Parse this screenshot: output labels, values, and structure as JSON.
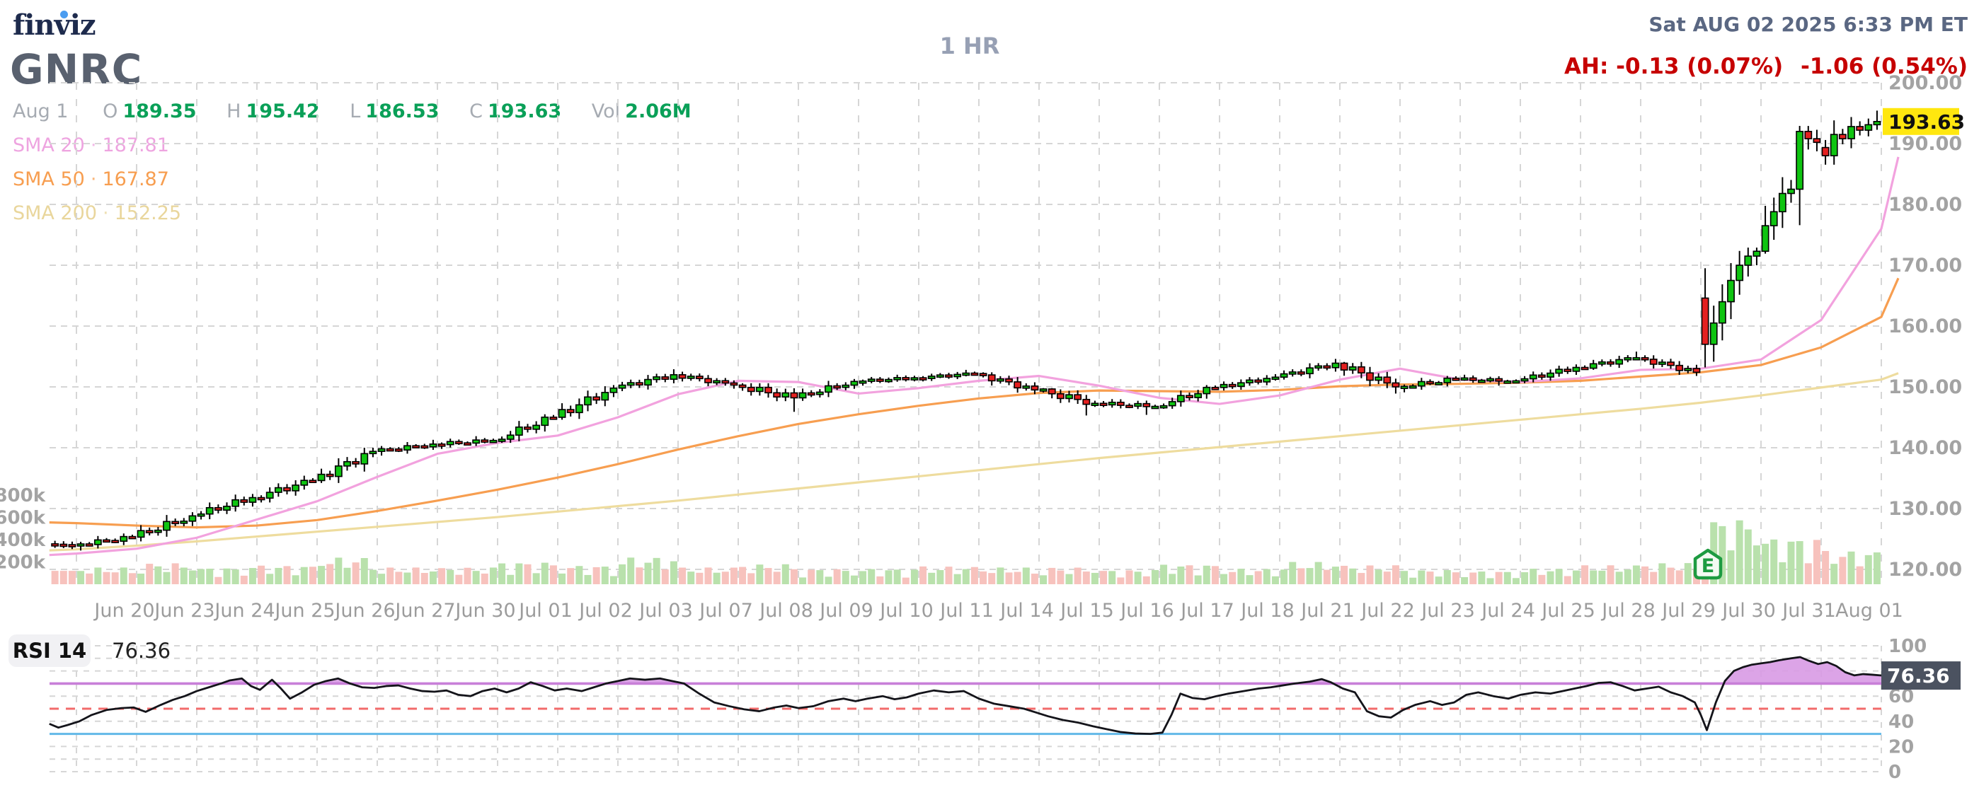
{
  "header": {
    "logo": "finviz",
    "ticker": "GNRC",
    "timeframe": "1 HR",
    "timestamp": "Sat AUG 02 2025 6:33 PM ET",
    "afterhours_1": "AH: -0.13 (0.07%)",
    "afterhours_2": "-1.06 (0.54%)",
    "quote": {
      "date": "Aug 1",
      "o_label": "O",
      "o": "189.35",
      "h_label": "H",
      "h": "195.42",
      "l_label": "L",
      "l": "186.53",
      "c_label": "C",
      "c": "193.63",
      "vol_label": "Vol",
      "vol": "2.06M"
    },
    "sma_legend": [
      {
        "label": "SMA 20",
        "separator": "·",
        "value": "187.81"
      },
      {
        "label": "SMA 50",
        "separator": "·",
        "value": "167.87"
      },
      {
        "label": "SMA 200",
        "separator": "·",
        "value": "152.25"
      }
    ]
  },
  "price_axis": {
    "labels": [
      "200.00",
      "190.00",
      "180.00",
      "170.00",
      "160.00",
      "150.00",
      "140.00",
      "130.00",
      "120.00"
    ],
    "max": 200,
    "min": 120,
    "step": 10,
    "last_price": "193.63",
    "last_price_value": 193.63
  },
  "volume_axis": {
    "labels": [
      [
        "800k",
        800
      ],
      [
        "600k",
        600
      ],
      [
        "400k",
        400
      ],
      [
        "200k",
        200
      ]
    ]
  },
  "dates": [
    "Jun 20",
    "Jun 23",
    "Jun 24",
    "Jun 25",
    "Jun 26",
    "Jun 27",
    "Jun 30",
    "Jul 01",
    "Jul 02",
    "Jul 03",
    "Jul 07",
    "Jul 08",
    "Jul 09",
    "Jul 10",
    "Jul 11",
    "Jul 14",
    "Jul 15",
    "Jul 16",
    "Jul 17",
    "Jul 18",
    "Jul 21",
    "Jul 22",
    "Jul 23",
    "Jul 24",
    "Jul 25",
    "Jul 28",
    "Jul 29",
    "Jul 30",
    "Jul 31",
    "Aug 01"
  ],
  "earnings_marker": {
    "label": "E",
    "day": "Jul 30",
    "day_index": 27
  },
  "rsi": {
    "label": "RSI 14",
    "value": "76.36",
    "value_num": 76.36,
    "axis_labels": [
      100,
      80,
      60,
      40,
      20,
      0
    ],
    "grid_levels": [
      100,
      90,
      80,
      60,
      40,
      20,
      10,
      0
    ],
    "levels": {
      "overbought": 70,
      "mid": 50,
      "oversold": 30
    },
    "points": [
      [
        -0.45,
        38
      ],
      [
        -0.3,
        35
      ],
      [
        -0.15,
        37
      ],
      [
        0.05,
        40
      ],
      [
        0.25,
        45
      ],
      [
        0.5,
        49
      ],
      [
        0.75,
        50.5
      ],
      [
        0.95,
        51
      ],
      [
        1.15,
        47.5
      ],
      [
        1.4,
        53
      ],
      [
        1.6,
        57
      ],
      [
        1.8,
        60
      ],
      [
        2.0,
        64
      ],
      [
        2.2,
        67
      ],
      [
        2.4,
        70
      ],
      [
        2.55,
        72.5
      ],
      [
        2.75,
        74
      ],
      [
        2.9,
        68
      ],
      [
        3.05,
        65
      ],
      [
        3.25,
        73
      ],
      [
        3.4,
        66
      ],
      [
        3.55,
        58
      ],
      [
        3.75,
        63
      ],
      [
        3.95,
        69
      ],
      [
        4.15,
        72
      ],
      [
        4.35,
        74
      ],
      [
        4.55,
        70
      ],
      [
        4.75,
        67
      ],
      [
        4.95,
        66.5
      ],
      [
        5.15,
        68
      ],
      [
        5.35,
        68.5
      ],
      [
        5.55,
        66
      ],
      [
        5.75,
        64
      ],
      [
        5.95,
        63.5
      ],
      [
        6.15,
        64.5
      ],
      [
        6.35,
        61
      ],
      [
        6.55,
        60
      ],
      [
        6.75,
        64
      ],
      [
        6.95,
        66
      ],
      [
        7.15,
        63
      ],
      [
        7.35,
        66
      ],
      [
        7.55,
        71
      ],
      [
        7.75,
        68
      ],
      [
        7.95,
        64.5
      ],
      [
        8.15,
        66
      ],
      [
        8.4,
        64
      ],
      [
        8.6,
        67
      ],
      [
        8.8,
        70
      ],
      [
        9.0,
        72
      ],
      [
        9.2,
        74
      ],
      [
        9.45,
        73
      ],
      [
        9.7,
        74
      ],
      [
        9.9,
        72
      ],
      [
        10.1,
        70
      ],
      [
        10.35,
        62
      ],
      [
        10.6,
        55
      ],
      [
        10.85,
        52
      ],
      [
        11.1,
        49.5
      ],
      [
        11.35,
        48
      ],
      [
        11.6,
        51
      ],
      [
        11.8,
        52.5
      ],
      [
        12.0,
        50.5
      ],
      [
        12.25,
        52
      ],
      [
        12.5,
        56
      ],
      [
        12.75,
        58
      ],
      [
        12.95,
        56
      ],
      [
        13.15,
        58
      ],
      [
        13.4,
        60
      ],
      [
        13.6,
        57.5
      ],
      [
        13.8,
        59
      ],
      [
        14.0,
        62
      ],
      [
        14.25,
        64.5
      ],
      [
        14.5,
        63
      ],
      [
        14.75,
        64
      ],
      [
        15.0,
        58
      ],
      [
        15.25,
        54
      ],
      [
        15.5,
        52
      ],
      [
        15.75,
        50
      ],
      [
        15.95,
        47
      ],
      [
        16.15,
        44
      ],
      [
        16.4,
        41
      ],
      [
        16.65,
        39
      ],
      [
        16.9,
        36
      ],
      [
        17.1,
        34
      ],
      [
        17.35,
        31.5
      ],
      [
        17.6,
        30.3
      ],
      [
        17.85,
        30
      ],
      [
        18.05,
        31
      ],
      [
        18.2,
        45
      ],
      [
        18.35,
        62
      ],
      [
        18.55,
        58.5
      ],
      [
        18.75,
        57.5
      ],
      [
        18.95,
        60
      ],
      [
        19.15,
        62
      ],
      [
        19.4,
        64
      ],
      [
        19.65,
        66
      ],
      [
        19.85,
        67
      ],
      [
        20.05,
        68.5
      ],
      [
        20.25,
        70
      ],
      [
        20.5,
        71.5
      ],
      [
        20.7,
        73.5
      ],
      [
        20.85,
        71
      ],
      [
        21.05,
        66
      ],
      [
        21.25,
        63
      ],
      [
        21.45,
        48
      ],
      [
        21.65,
        44
      ],
      [
        21.85,
        43
      ],
      [
        22.05,
        49
      ],
      [
        22.25,
        53
      ],
      [
        22.5,
        56
      ],
      [
        22.7,
        53
      ],
      [
        22.9,
        55
      ],
      [
        23.1,
        61
      ],
      [
        23.3,
        63
      ],
      [
        23.55,
        60
      ],
      [
        23.8,
        58
      ],
      [
        24.0,
        61
      ],
      [
        24.25,
        63
      ],
      [
        24.5,
        62
      ],
      [
        24.7,
        64
      ],
      [
        24.9,
        66
      ],
      [
        25.1,
        68
      ],
      [
        25.3,
        70.5
      ],
      [
        25.5,
        71
      ],
      [
        25.7,
        68
      ],
      [
        25.9,
        64.5
      ],
      [
        26.1,
        66
      ],
      [
        26.3,
        67.5
      ],
      [
        26.5,
        63
      ],
      [
        26.7,
        60
      ],
      [
        26.9,
        55
      ],
      [
        27.0,
        45
      ],
      [
        27.1,
        33
      ],
      [
        27.25,
        55
      ],
      [
        27.4,
        72
      ],
      [
        27.55,
        80
      ],
      [
        27.7,
        83
      ],
      [
        27.85,
        85
      ],
      [
        28.0,
        86
      ],
      [
        28.15,
        87
      ],
      [
        28.3,
        88.5
      ],
      [
        28.5,
        90
      ],
      [
        28.65,
        91
      ],
      [
        28.8,
        88
      ],
      [
        28.95,
        85.5
      ],
      [
        29.1,
        87
      ],
      [
        29.25,
        84
      ],
      [
        29.4,
        79
      ],
      [
        29.55,
        76.5
      ],
      [
        29.7,
        77.5
      ],
      [
        29.85,
        77
      ],
      [
        30.0,
        76.4
      ]
    ]
  },
  "chart_data": {
    "type": "candlestick",
    "title": "GNRC 1 HR",
    "bars_per_day": 7,
    "pre": {
      "o": 124.2,
      "h": 124.9,
      "l": 123.2,
      "c": 124.0,
      "bars": 3,
      "vol_k": 120
    },
    "days": [
      {
        "date": "Jun 20",
        "o": 124.0,
        "h": 125.9,
        "l": 123.1,
        "c": 125.3,
        "vol_k": 150
      },
      {
        "date": "Jun 23",
        "o": 125.3,
        "h": 129.4,
        "l": 124.6,
        "c": 128.8,
        "vol_k": 190
      },
      {
        "date": "Jun 24",
        "o": 128.8,
        "h": 132.4,
        "l": 128.2,
        "c": 131.8,
        "vol_k": 150
      },
      {
        "date": "Jun 25",
        "o": 131.8,
        "h": 135.4,
        "l": 131.0,
        "c": 134.6,
        "vol_k": 170
      },
      {
        "date": "Jun 26",
        "o": 134.6,
        "h": 140.0,
        "l": 134.2,
        "c": 139.4,
        "vol_k": 240
      },
      {
        "date": "Jun 27",
        "o": 139.4,
        "h": 141.3,
        "l": 138.7,
        "c": 140.6,
        "vol_k": 150
      },
      {
        "date": "Jun 30",
        "o": 140.6,
        "h": 141.9,
        "l": 139.8,
        "c": 141.2,
        "vol_k": 150
      },
      {
        "date": "Jul 01",
        "o": 141.2,
        "h": 145.5,
        "l": 140.8,
        "c": 145.0,
        "vol_k": 200
      },
      {
        "date": "Jul 02",
        "o": 145.0,
        "h": 150.3,
        "l": 144.6,
        "c": 149.8,
        "vol_k": 170
      },
      {
        "date": "Jul 03",
        "o": 149.8,
        "h": 152.9,
        "l": 149.3,
        "c": 152.0,
        "vol_k": 240
      },
      {
        "date": "Jul 07",
        "o": 152.0,
        "h": 152.5,
        "l": 149.7,
        "c": 150.3,
        "vol_k": 150
      },
      {
        "date": "Jul 08",
        "o": 150.3,
        "h": 150.6,
        "l": 145.9,
        "c": 148.2,
        "vol_k": 180
      },
      {
        "date": "Jul 09",
        "o": 148.2,
        "h": 151.3,
        "l": 147.7,
        "c": 150.9,
        "vol_k": 140
      },
      {
        "date": "Jul 10",
        "o": 150.9,
        "h": 152.0,
        "l": 150.2,
        "c": 151.5,
        "vol_k": 140
      },
      {
        "date": "Jul 11",
        "o": 151.5,
        "h": 152.8,
        "l": 150.9,
        "c": 152.2,
        "vol_k": 160
      },
      {
        "date": "Jul 14",
        "o": 152.2,
        "h": 152.4,
        "l": 148.8,
        "c": 149.5,
        "vol_k": 150
      },
      {
        "date": "Jul 15",
        "o": 149.5,
        "h": 149.8,
        "l": 145.3,
        "c": 147.3,
        "vol_k": 150
      },
      {
        "date": "Jul 16",
        "o": 147.3,
        "h": 148.0,
        "l": 145.4,
        "c": 146.8,
        "vol_k": 130
      },
      {
        "date": "Jul 17",
        "o": 146.8,
        "h": 150.3,
        "l": 146.4,
        "c": 149.9,
        "vol_k": 180
      },
      {
        "date": "Jul 18",
        "o": 149.9,
        "h": 152.1,
        "l": 149.4,
        "c": 151.6,
        "vol_k": 140
      },
      {
        "date": "Jul 21",
        "o": 151.6,
        "h": 154.6,
        "l": 151.2,
        "c": 153.9,
        "vol_k": 200
      },
      {
        "date": "Jul 22",
        "o": 153.9,
        "h": 154.1,
        "l": 148.9,
        "c": 150.0,
        "vol_k": 170
      },
      {
        "date": "Jul 23",
        "o": 150.0,
        "h": 151.8,
        "l": 149.1,
        "c": 151.3,
        "vol_k": 130
      },
      {
        "date": "Jul 24",
        "o": 151.3,
        "h": 152.0,
        "l": 150.2,
        "c": 151.0,
        "vol_k": 120
      },
      {
        "date": "Jul 25",
        "o": 151.0,
        "h": 153.7,
        "l": 150.6,
        "c": 153.2,
        "vol_k": 140
      },
      {
        "date": "Jul 28",
        "o": 153.2,
        "h": 155.8,
        "l": 152.8,
        "c": 154.8,
        "vol_k": 170
      },
      {
        "date": "Jul 29",
        "o": 154.8,
        "h": 155.2,
        "l": 151.8,
        "c": 152.4,
        "vol_k": 190
      },
      {
        "date": "Jul 30",
        "o": 164.6,
        "h": 172.9,
        "l": 153.2,
        "c": 172.3,
        "vol_k": 590,
        "earnings": true,
        "path": [
          157.0,
          160.5,
          164.0,
          167.5,
          170.0,
          171.5,
          172.3
        ]
      },
      {
        "date": "Jul 31",
        "o": 172.3,
        "h": 192.9,
        "l": 171.9,
        "c": 190.2,
        "vol_k": 420,
        "path": [
          176.5,
          178.8,
          181.8,
          182.5,
          192.0,
          190.8,
          190.2
        ]
      },
      {
        "date": "Aug 01",
        "o": 189.35,
        "h": 195.42,
        "l": 186.53,
        "c": 193.63,
        "vol_k": 300,
        "path": [
          188.0,
          191.5,
          190.8,
          192.8,
          192.2,
          193.1,
          193.63
        ]
      }
    ],
    "smas": {
      "sma20": [
        122.6,
        123.4,
        125.2,
        128.2,
        131.2,
        135.2,
        139.0,
        140.8,
        142.0,
        145.0,
        148.8,
        151.0,
        150.8,
        148.9,
        149.8,
        151.0,
        151.8,
        150.2,
        148.2,
        147.2,
        148.6,
        151.2,
        153.0,
        151.2,
        150.8,
        151.4,
        152.8,
        153.0,
        154.5,
        161.0,
        176.0
      ],
      "sma50": [
        127.6,
        127.2,
        126.9,
        127.2,
        128.1,
        129.6,
        131.3,
        133.1,
        135.1,
        137.3,
        139.7,
        141.9,
        143.9,
        145.5,
        146.9,
        148.1,
        149.0,
        149.4,
        149.3,
        149.2,
        149.5,
        150.1,
        150.4,
        150.5,
        150.7,
        151.0,
        151.7,
        152.4,
        153.6,
        156.5,
        161.5
      ],
      "sma200": [
        123.3,
        123.9,
        124.6,
        125.4,
        126.2,
        127.0,
        127.8,
        128.6,
        129.5,
        130.4,
        131.3,
        132.3,
        133.3,
        134.3,
        135.3,
        136.3,
        137.3,
        138.3,
        139.2,
        140.1,
        141.0,
        141.9,
        142.8,
        143.7,
        144.6,
        145.5,
        146.4,
        147.4,
        148.6,
        149.9,
        151.2
      ],
      "tails": {
        "sma20": 187.81,
        "sma50": 167.87,
        "sma200": 152.25
      }
    },
    "colors": {
      "up": "#0fc411",
      "down": "#e42020",
      "outline": "#000000",
      "vol_up": "#b9e1ac",
      "vol_down": "#f7c2bd",
      "sma20": "#f2a2de",
      "sma50": "#f79e50",
      "sma200": "#eedc9e",
      "grid": "#d6d6d6",
      "axis_text": "#a3a3a3",
      "date_text": "#9c9c9c",
      "price_badge_bg": "#ffe70f",
      "price_badge_text": "#111111",
      "rsi_line": "#14141a",
      "rsi_overbought": "#c87fd8",
      "rsi_fill": "#d89ae4",
      "rsi_mid": "#f26b6b",
      "rsi_oversold": "#62b8e8",
      "rsi_badge_bg": "#4b5260",
      "rsi_badge_text": "#ffffff",
      "earnings_green": "#1d9b41"
    }
  }
}
